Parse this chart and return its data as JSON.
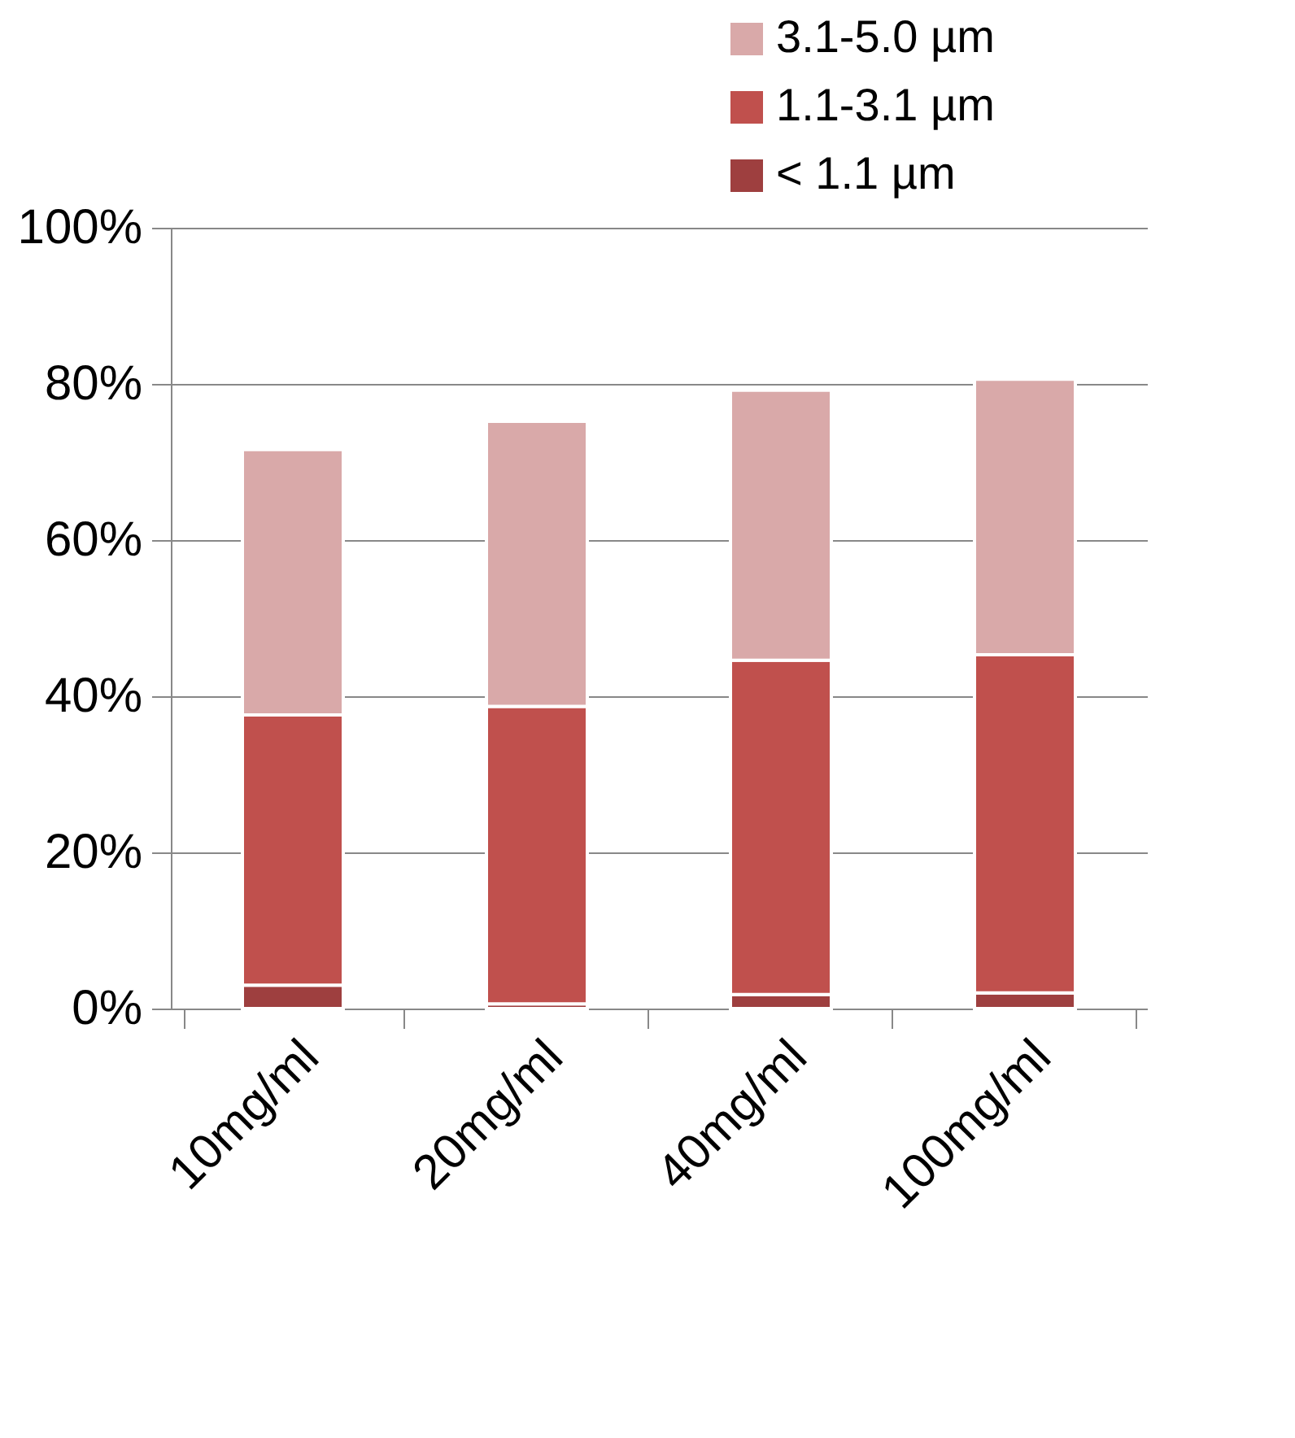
{
  "chart_data": {
    "type": "bar",
    "stacked": true,
    "categories": [
      "10mg/ml",
      "20mg/ml",
      "40mg/ml",
      "100mg/ml"
    ],
    "series": [
      {
        "name": "< 1.1 µm",
        "color": "#9e3f3f",
        "values": [
          3.0,
          0.6,
          1.8,
          2.0
        ]
      },
      {
        "name": "1.1-3.1 µm",
        "color": "#c0504d",
        "values": [
          34.6,
          38.1,
          42.8,
          43.3
        ]
      },
      {
        "name": "3.1-5.0 µm",
        "color": "#d9a9a9",
        "values": [
          34.0,
          36.5,
          34.6,
          35.3
        ]
      }
    ],
    "ylim": [
      0,
      100
    ],
    "yticks": [
      {
        "value": 0,
        "label": "0%"
      },
      {
        "value": 20,
        "label": "20%"
      },
      {
        "value": 40,
        "label": "40%"
      },
      {
        "value": 60,
        "label": "60%"
      },
      {
        "value": 80,
        "label": "80%"
      },
      {
        "value": 100,
        "label": "100%"
      }
    ],
    "grid": "y",
    "legend": "top right"
  }
}
